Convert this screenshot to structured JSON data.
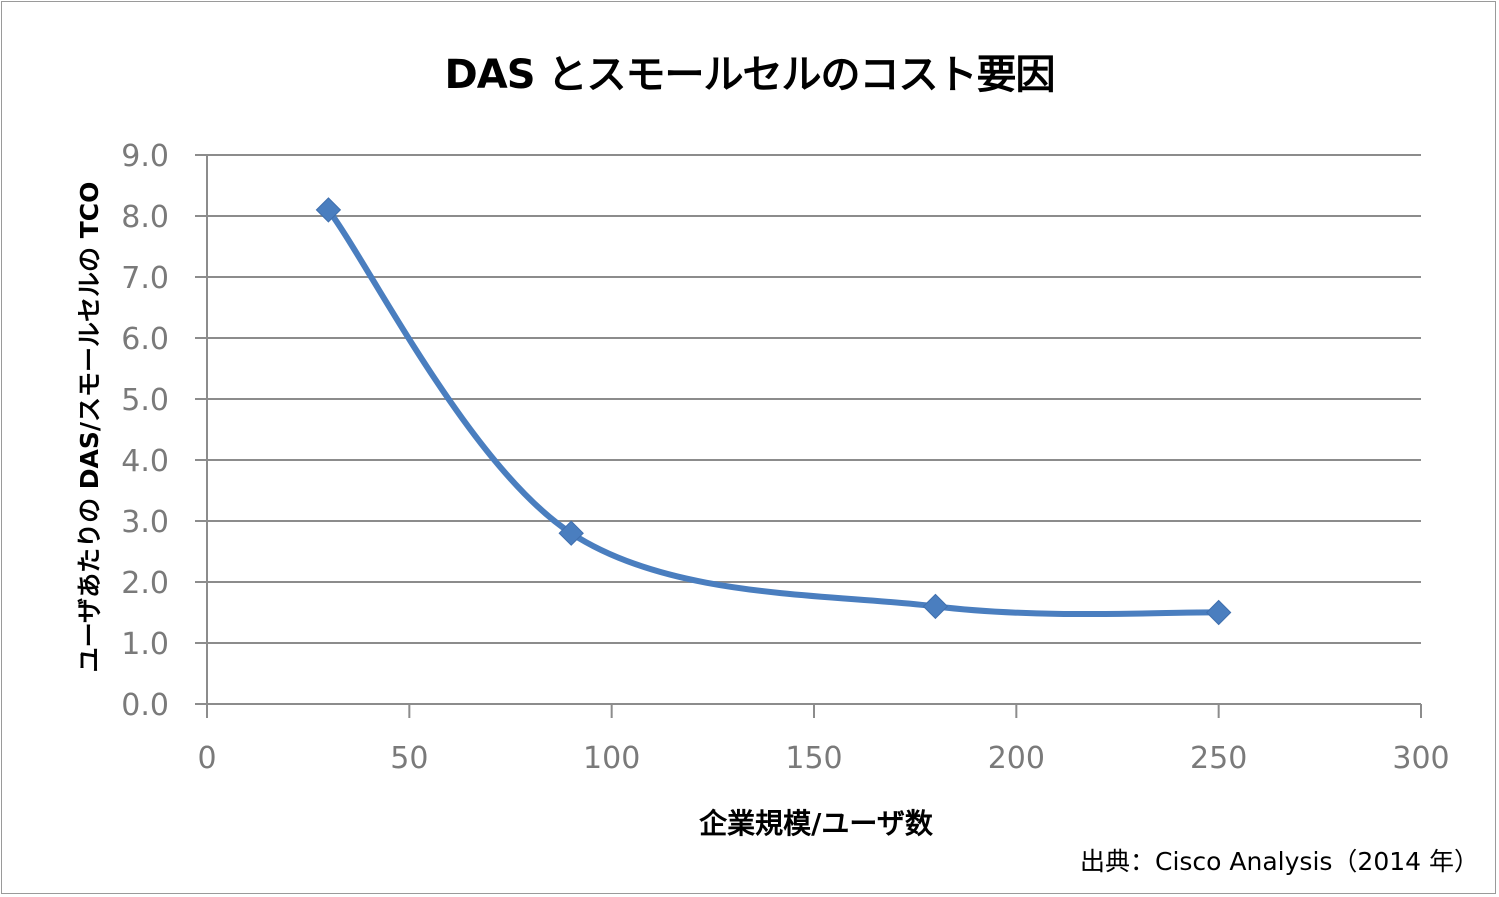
{
  "chart_data": {
    "type": "line",
    "title": "DAS とスモールセルのコスト要因",
    "xlabel": "企業規模/ユーザ数",
    "ylabel": "ユーザあたりの DAS/スモールセルの TCO",
    "source": "出典：Cisco Analysis（2014 年）",
    "xlim": [
      0,
      300
    ],
    "ylim": [
      0,
      9
    ],
    "x_ticks": [
      "0",
      "50",
      "100",
      "150",
      "200",
      "250",
      "300"
    ],
    "y_ticks": [
      "0.0",
      "1.0",
      "2.0",
      "3.0",
      "4.0",
      "5.0",
      "6.0",
      "7.0",
      "8.0",
      "9.0"
    ],
    "grid": true,
    "smooth": true,
    "series": [
      {
        "x": [
          30,
          90,
          180,
          250
        ],
        "values": [
          8.1,
          2.8,
          1.6,
          1.5
        ],
        "color": "#4a7ebf",
        "marker": "diamond"
      }
    ]
  }
}
